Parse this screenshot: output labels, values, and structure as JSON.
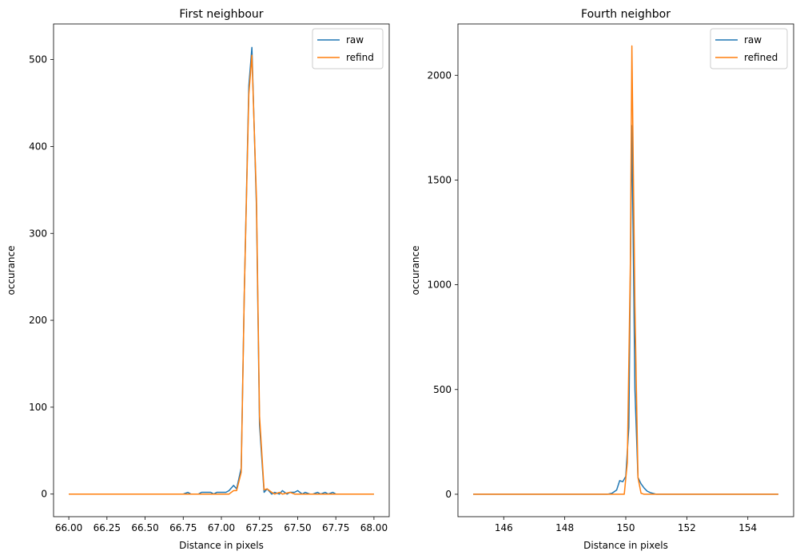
{
  "chart_data": [
    {
      "type": "line",
      "title": "First neighbour",
      "xlabel": "Distance in pixels",
      "ylabel": "occurance",
      "xlim": [
        65.9,
        68.1
      ],
      "ylim": [
        -26,
        541
      ],
      "xticks": [
        66.0,
        66.25,
        66.5,
        66.75,
        67.0,
        67.25,
        67.5,
        67.75,
        68.0
      ],
      "xtick_labels": [
        "66.00",
        "66.25",
        "66.50",
        "66.75",
        "67.00",
        "67.25",
        "67.50",
        "67.75",
        "68.00"
      ],
      "yticks": [
        0,
        100,
        200,
        300,
        400,
        500
      ],
      "ytick_labels": [
        "0",
        "100",
        "200",
        "300",
        "400",
        "500"
      ],
      "legend_position": "top-right",
      "series": [
        {
          "name": "raw",
          "color": "#1f77b4",
          "points": [
            [
              66.0,
              0
            ],
            [
              66.75,
              0
            ],
            [
              66.78,
              2
            ],
            [
              66.8,
              0
            ],
            [
              66.85,
              0
            ],
            [
              66.87,
              2
            ],
            [
              66.9,
              2
            ],
            [
              66.93,
              2
            ],
            [
              66.95,
              0
            ],
            [
              66.97,
              2
            ],
            [
              67.0,
              2
            ],
            [
              67.03,
              2
            ],
            [
              67.05,
              4
            ],
            [
              67.08,
              10
            ],
            [
              67.1,
              6
            ],
            [
              67.13,
              30
            ],
            [
              67.15,
              230
            ],
            [
              67.18,
              470
            ],
            [
              67.2,
              514
            ],
            [
              67.23,
              330
            ],
            [
              67.25,
              80
            ],
            [
              67.28,
              2
            ],
            [
              67.3,
              6
            ],
            [
              67.33,
              0
            ],
            [
              67.35,
              2
            ],
            [
              67.38,
              0
            ],
            [
              67.4,
              4
            ],
            [
              67.43,
              0
            ],
            [
              67.45,
              2
            ],
            [
              67.48,
              2
            ],
            [
              67.5,
              4
            ],
            [
              67.53,
              0
            ],
            [
              67.55,
              2
            ],
            [
              67.58,
              0
            ],
            [
              67.6,
              0
            ],
            [
              67.63,
              2
            ],
            [
              67.65,
              0
            ],
            [
              67.68,
              2
            ],
            [
              67.7,
              0
            ],
            [
              67.73,
              2
            ],
            [
              67.75,
              0
            ],
            [
              68.0,
              0
            ]
          ]
        },
        {
          "name": "refind",
          "color": "#ff7f0e",
          "points": [
            [
              66.0,
              0
            ],
            [
              67.05,
              0
            ],
            [
              67.08,
              4
            ],
            [
              67.1,
              4
            ],
            [
              67.13,
              25
            ],
            [
              67.15,
              230
            ],
            [
              67.18,
              460
            ],
            [
              67.2,
              505
            ],
            [
              67.23,
              340
            ],
            [
              67.25,
              90
            ],
            [
              67.28,
              5
            ],
            [
              67.3,
              6
            ],
            [
              67.33,
              2
            ],
            [
              67.35,
              0
            ],
            [
              67.38,
              2
            ],
            [
              67.4,
              0
            ],
            [
              67.45,
              2
            ],
            [
              67.48,
              0
            ],
            [
              68.0,
              0
            ]
          ]
        }
      ]
    },
    {
      "type": "line",
      "title": "Fourth neighbor",
      "xlabel": "Distance in pixels",
      "ylabel": "occurance",
      "xlim": [
        144.5,
        155.5
      ],
      "ylim": [
        -107,
        2245
      ],
      "xticks": [
        146,
        148,
        150,
        152,
        154
      ],
      "xtick_labels": [
        "146",
        "148",
        "150",
        "152",
        "154"
      ],
      "yticks": [
        0,
        500,
        1000,
        1500,
        2000
      ],
      "ytick_labels": [
        "0",
        "500",
        "1000",
        "1500",
        "2000"
      ],
      "legend_position": "top-right",
      "series": [
        {
          "name": "raw",
          "color": "#1f77b4",
          "points": [
            [
              145.0,
              0
            ],
            [
              149.4,
              0
            ],
            [
              149.55,
              5
            ],
            [
              149.7,
              20
            ],
            [
              149.8,
              65
            ],
            [
              149.9,
              60
            ],
            [
              150.0,
              85
            ],
            [
              150.1,
              320
            ],
            [
              150.2,
              1760
            ],
            [
              150.3,
              500
            ],
            [
              150.4,
              80
            ],
            [
              150.5,
              50
            ],
            [
              150.6,
              30
            ],
            [
              150.7,
              15
            ],
            [
              150.8,
              8
            ],
            [
              151.0,
              0
            ],
            [
              155.0,
              0
            ]
          ]
        },
        {
          "name": "refined",
          "color": "#ff7f0e",
          "points": [
            [
              145.0,
              0
            ],
            [
              149.95,
              0
            ],
            [
              150.05,
              150
            ],
            [
              150.15,
              1100
            ],
            [
              150.2,
              2140
            ],
            [
              150.3,
              900
            ],
            [
              150.4,
              80
            ],
            [
              150.5,
              5
            ],
            [
              150.6,
              0
            ],
            [
              155.0,
              0
            ]
          ]
        }
      ]
    }
  ]
}
